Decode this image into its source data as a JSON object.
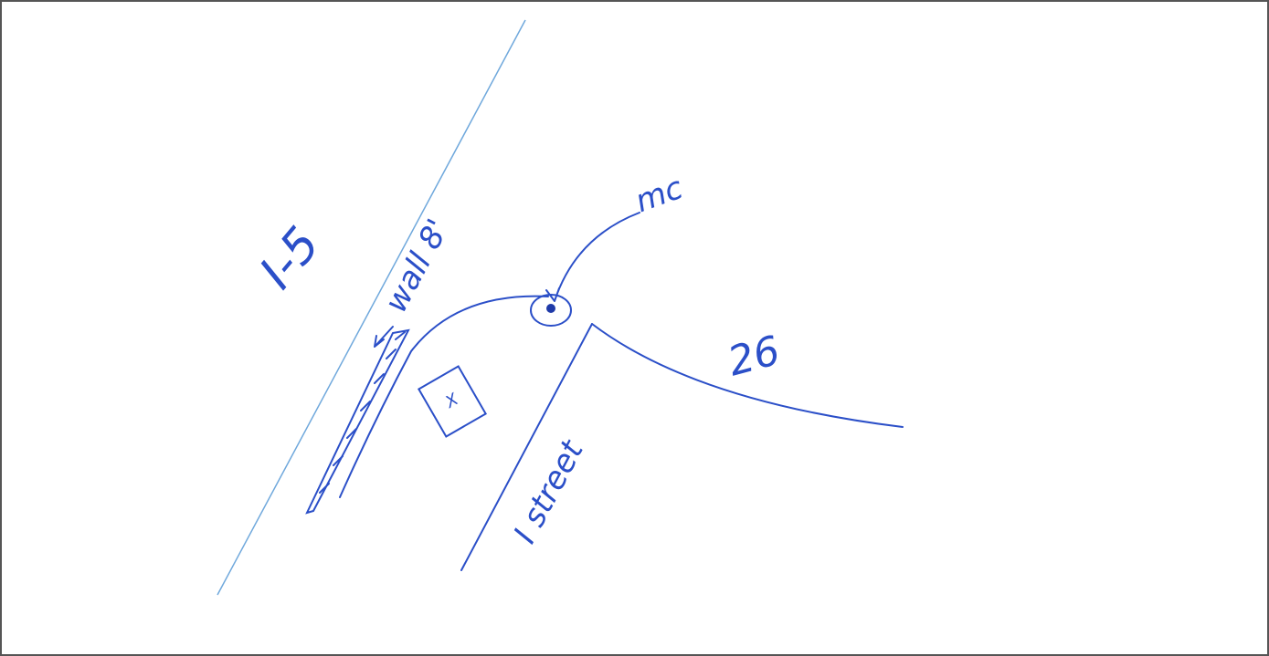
{
  "labels": {
    "highway": "I-5",
    "wall": "wall 8'",
    "marker": "mc",
    "distance": "26",
    "box": "X",
    "street": "I street"
  }
}
